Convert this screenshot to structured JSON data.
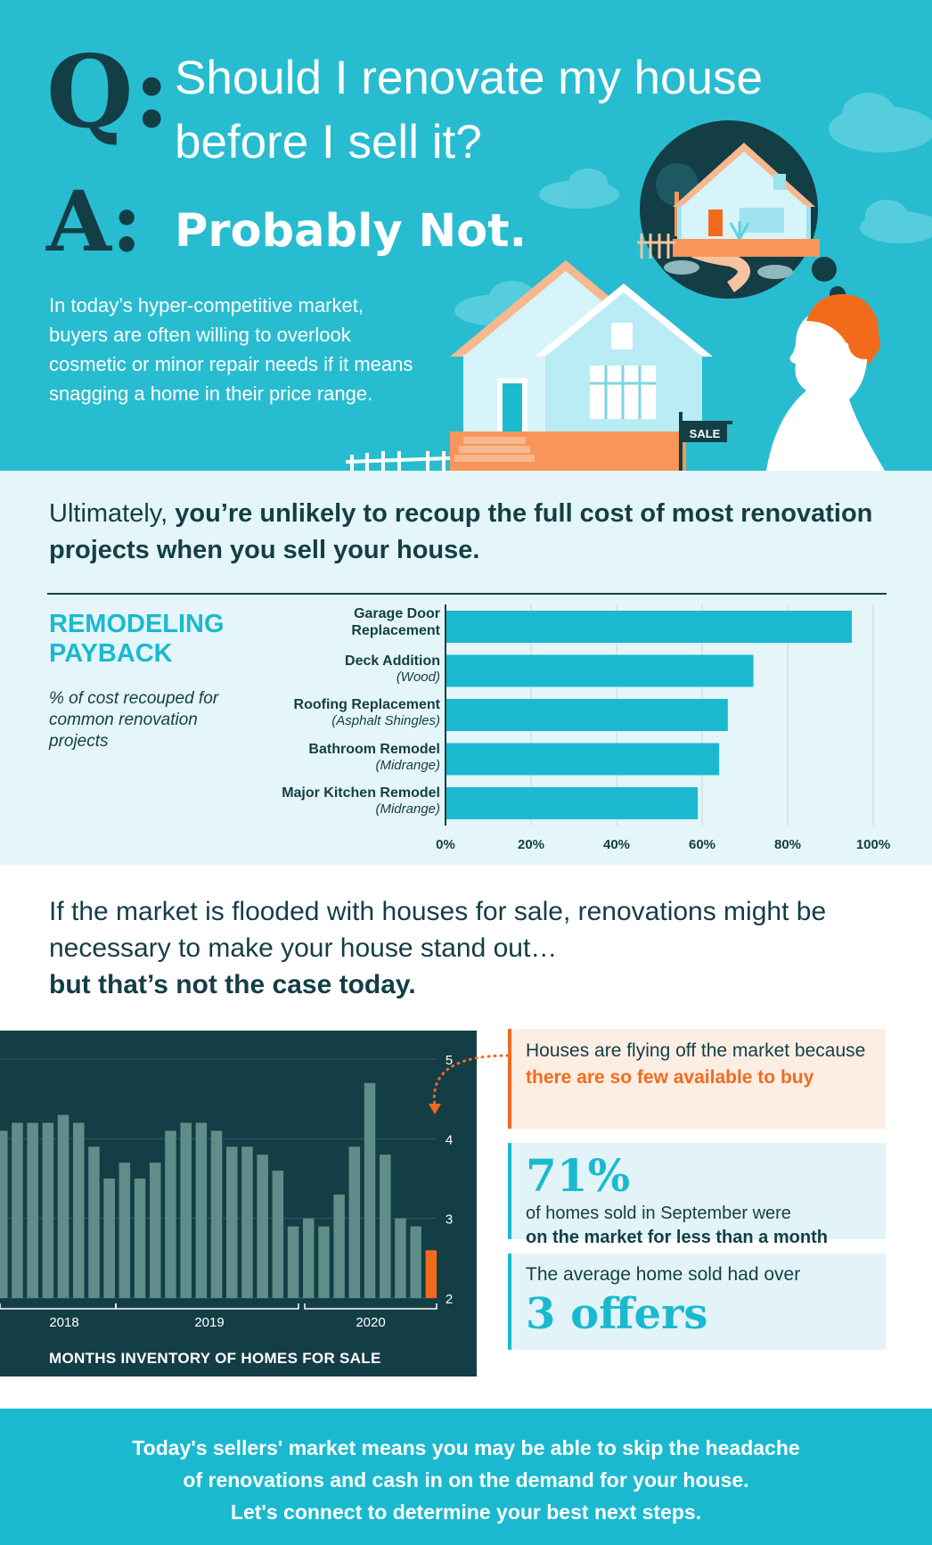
{
  "hero": {
    "q_letter": "Q:",
    "question": "Should I renovate my house before I sell it?",
    "a_letter": "A:",
    "answer": "Probably Not.",
    "body": "In today’s hyper-competitive market, buyers are often willing to overlook cosmetic or minor repair needs if it means snagging a home in their price range.",
    "sign_text": "SALE",
    "colors": {
      "background": "#28bcd0",
      "dark": "#143e46",
      "accent": "#f7955a"
    }
  },
  "payback": {
    "heading_plain": "Ultimately,",
    "heading_bold": "you’re unlikely to recoup the full cost of most renovation projects when you sell your house.",
    "title": "REMODELING PAYBACK",
    "subtitle": "% of cost recouped for common renovation projects",
    "bars": [
      {
        "label": "Garage Door Replacement",
        "sub": "",
        "value": 95
      },
      {
        "label": "Deck Addition",
        "sub": "(Wood)",
        "value": 72
      },
      {
        "label": "Roofing Replacement",
        "sub": "(Asphalt Shingles)",
        "value": 66
      },
      {
        "label": "Bathroom Remodel",
        "sub": "(Midrange)",
        "value": 64
      },
      {
        "label": "Major Kitchen Remodel",
        "sub": "(Midrange)",
        "value": 59
      }
    ]
  },
  "market": {
    "heading_line": "If the market is flooded with houses for sale, renovations might be necessary to make your house stand out…",
    "heading_bold": "but that’s not the case today.",
    "callout1_plain": "Houses are flying off the market because",
    "callout1_highlight": "there are so few available to buy",
    "stat_percent": "71%",
    "stat_line": "of homes sold in September were",
    "stat_bold": "on the market for less than a month",
    "offers_line": "The average home sold had over",
    "offers_big": "3 offers",
    "inventory_title": "MONTHS INVENTORY OF HOMES FOR SALE"
  },
  "chart_data": [
    {
      "type": "bar",
      "title": "REMODELING PAYBACK",
      "subtitle": "% of cost recouped for common renovation projects",
      "categories": [
        "Garage Door Replacement",
        "Deck Addition (Wood)",
        "Roofing Replacement (Asphalt Shingles)",
        "Bathroom Remodel (Midrange)",
        "Major Kitchen Remodel (Midrange)"
      ],
      "values": [
        95,
        72,
        66,
        64,
        59
      ],
      "xlim": [
        0,
        100
      ],
      "ticks": [
        "0%",
        "20%",
        "40%",
        "60%",
        "80%",
        "100%"
      ],
      "orientation": "horizontal",
      "grid": true,
      "color": "#1bb9cf"
    },
    {
      "type": "bar",
      "title": "MONTHS INVENTORY OF HOMES FOR SALE",
      "ylim": [
        2,
        5
      ],
      "yticks": [
        "2",
        "3",
        "4",
        "5"
      ],
      "years": [
        "2018",
        "2019",
        "2020"
      ],
      "values": [
        4.1,
        4.2,
        4.2,
        4.2,
        4.3,
        4.2,
        3.9,
        3.5,
        3.7,
        3.5,
        3.7,
        4.1,
        4.2,
        4.2,
        4.1,
        3.9,
        3.9,
        3.8,
        3.6,
        2.9,
        3.0,
        2.9,
        3.3,
        3.9,
        4.7,
        3.8,
        3.0,
        2.9,
        2.6
      ],
      "highlight_last": true,
      "colors": {
        "bars": "#5f8e88",
        "highlight": "#f26b1d"
      }
    }
  ],
  "footer": {
    "line1": "Today's sellers' market means you may be able to skip the headache",
    "line2": "of renovations and cash in on the demand for your house.",
    "line3": "Let's connect to determine your best next steps."
  }
}
